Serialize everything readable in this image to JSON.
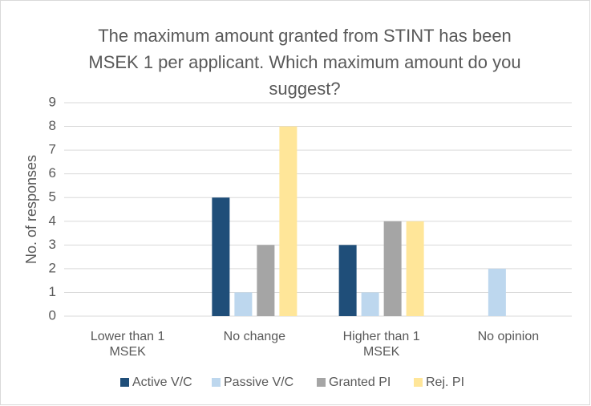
{
  "chart_data": {
    "type": "bar",
    "title": "The maximum amount granted from STINT has been MSEK 1 per applicant. Which maximum amount do you suggest?",
    "y_label": "No. of responses",
    "categories": [
      "Lower than 1 MSEK",
      "No change",
      "Higher than 1 MSEK",
      "No opinion"
    ],
    "series": [
      {
        "name": "Active V/C",
        "color": "#1f4e79",
        "values": [
          0,
          5,
          3,
          0
        ]
      },
      {
        "name": "Passive V/C",
        "color": "#bdd7ee",
        "values": [
          0,
          1,
          1,
          2
        ]
      },
      {
        "name": "Granted PI",
        "color": "#a5a5a5",
        "values": [
          0,
          3,
          4,
          0
        ]
      },
      {
        "name": "Rej. PI",
        "color": "#ffe699",
        "values": [
          0,
          8,
          4,
          0
        ]
      }
    ],
    "ylim": [
      0,
      9
    ],
    "yticks": [
      0,
      1,
      2,
      3,
      4,
      5,
      6,
      7,
      8,
      9
    ],
    "grid": true,
    "legend": "bottom"
  }
}
